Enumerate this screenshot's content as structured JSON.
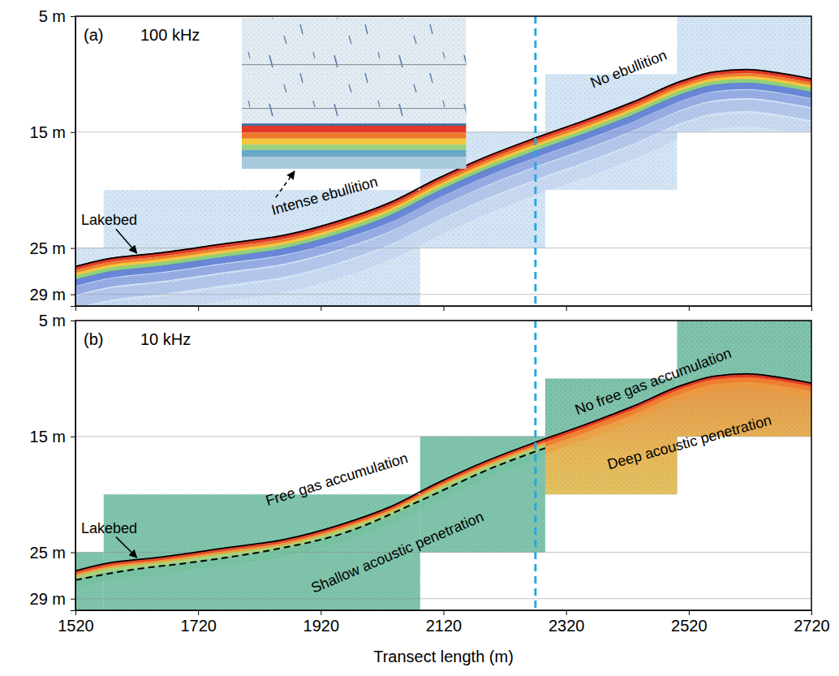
{
  "chart_data": [
    {
      "type": "echogram",
      "label": "(a)",
      "frequency": "100 kHz",
      "color": "#d4e6f5",
      "xlim": [
        1520,
        2720
      ],
      "xticks": [
        1520,
        1720,
        1920,
        2120,
        2320,
        2520,
        2720
      ],
      "ylim": [
        30,
        5
      ],
      "yticks": [
        {
          "value": 5,
          "label": "5 m"
        },
        {
          "value": 15,
          "label": "15 m"
        },
        {
          "value": 25,
          "label": "25 m"
        },
        {
          "value": 29,
          "label": "29 m"
        }
      ],
      "grid": true,
      "tick_labels": "y",
      "windows": [
        {
          "x": [
            1520,
            1566
          ],
          "y": [
            25,
            30
          ]
        },
        {
          "x": [
            1566,
            2082
          ],
          "y": [
            20,
            30
          ]
        },
        {
          "x": [
            2082,
            2286
          ],
          "y": [
            15,
            25
          ]
        },
        {
          "x": [
            2286,
            2501
          ],
          "y": [
            10,
            20
          ]
        },
        {
          "x": [
            2501,
            2720
          ],
          "y": [
            5,
            15
          ]
        }
      ],
      "lakebed": {
        "x": [
          1520,
          1566,
          1661,
          1767,
          1860,
          1953,
          2032,
          2111,
          2191,
          2270,
          2350,
          2429,
          2508,
          2561,
          2614,
          2667,
          2720
        ],
        "y": [
          26.6,
          26.0,
          25.4,
          24.6,
          23.9,
          22.6,
          21.1,
          19.0,
          17.1,
          15.5,
          14.0,
          12.4,
          10.6,
          9.8,
          9.6,
          9.9,
          10.4
        ]
      },
      "divider_x": 2270,
      "annotations": [
        {
          "text": "Lakebed",
          "x": 1575,
          "y": 22.6,
          "arrow_x": 1620
        },
        {
          "text": "Intense ebullition",
          "x": 1926,
          "y": 20.5,
          "inset": true
        },
        {
          "text": "No ebullition",
          "x": 2422,
          "y": 9.55
        }
      ]
    },
    {
      "type": "echogram",
      "label": "(b)",
      "frequency": "10 kHz",
      "color": "#7fc4aa",
      "x_label": "Transect length (m)",
      "xlim": [
        1520,
        2720
      ],
      "xticks": [
        1520,
        1720,
        1920,
        2120,
        2320,
        2520,
        2720
      ],
      "ylim": [
        30,
        5
      ],
      "yticks": [
        {
          "value": 5,
          "label": "5 m"
        },
        {
          "value": 15,
          "label": "15 m"
        },
        {
          "value": 25,
          "label": "25 m"
        },
        {
          "value": 29,
          "label": "29 m"
        }
      ],
      "grid": true,
      "windows": [
        {
          "x": [
            1520,
            1566
          ],
          "y": [
            25,
            30
          ]
        },
        {
          "x": [
            1566,
            2082
          ],
          "y": [
            20,
            30
          ]
        },
        {
          "x": [
            2082,
            2286
          ],
          "y": [
            15,
            25
          ]
        },
        {
          "x": [
            2286,
            2501
          ],
          "y": [
            10,
            20
          ]
        },
        {
          "x": [
            2501,
            2720
          ],
          "y": [
            5,
            15
          ]
        }
      ],
      "lakebed": {
        "x": [
          1520,
          1566,
          1661,
          1767,
          1860,
          1953,
          2032,
          2111,
          2191,
          2270,
          2350,
          2429,
          2508,
          2561,
          2614,
          2667,
          2720
        ],
        "y": [
          26.6,
          26.0,
          25.4,
          24.6,
          23.9,
          22.6,
          21.1,
          19.0,
          17.1,
          15.5,
          14.0,
          12.4,
          10.6,
          9.8,
          9.6,
          9.9,
          10.4
        ]
      },
      "gas_boundary": {
        "x": [
          1520,
          1600,
          1720,
          1840,
          1960,
          2080,
          2200,
          2286
        ],
        "y": [
          27.4,
          26.6,
          25.8,
          24.8,
          23.3,
          20.6,
          17.7,
          16.0
        ]
      },
      "divider_x": 2270,
      "annotations": [
        {
          "text": "Lakebed",
          "x": 1575,
          "y": 22.9,
          "arrow_x": 1620
        },
        {
          "text": "Free gas accumulation",
          "x": 1946,
          "y": 18.7
        },
        {
          "text": "Shallow acoustic penetration",
          "x": 2045,
          "y": 25.0
        },
        {
          "text": "No free gas accumulation",
          "x": 2462,
          "y": 10.25
        },
        {
          "text": "Deep acoustic penetration",
          "x": 2521,
          "y": 15.5
        }
      ]
    }
  ]
}
